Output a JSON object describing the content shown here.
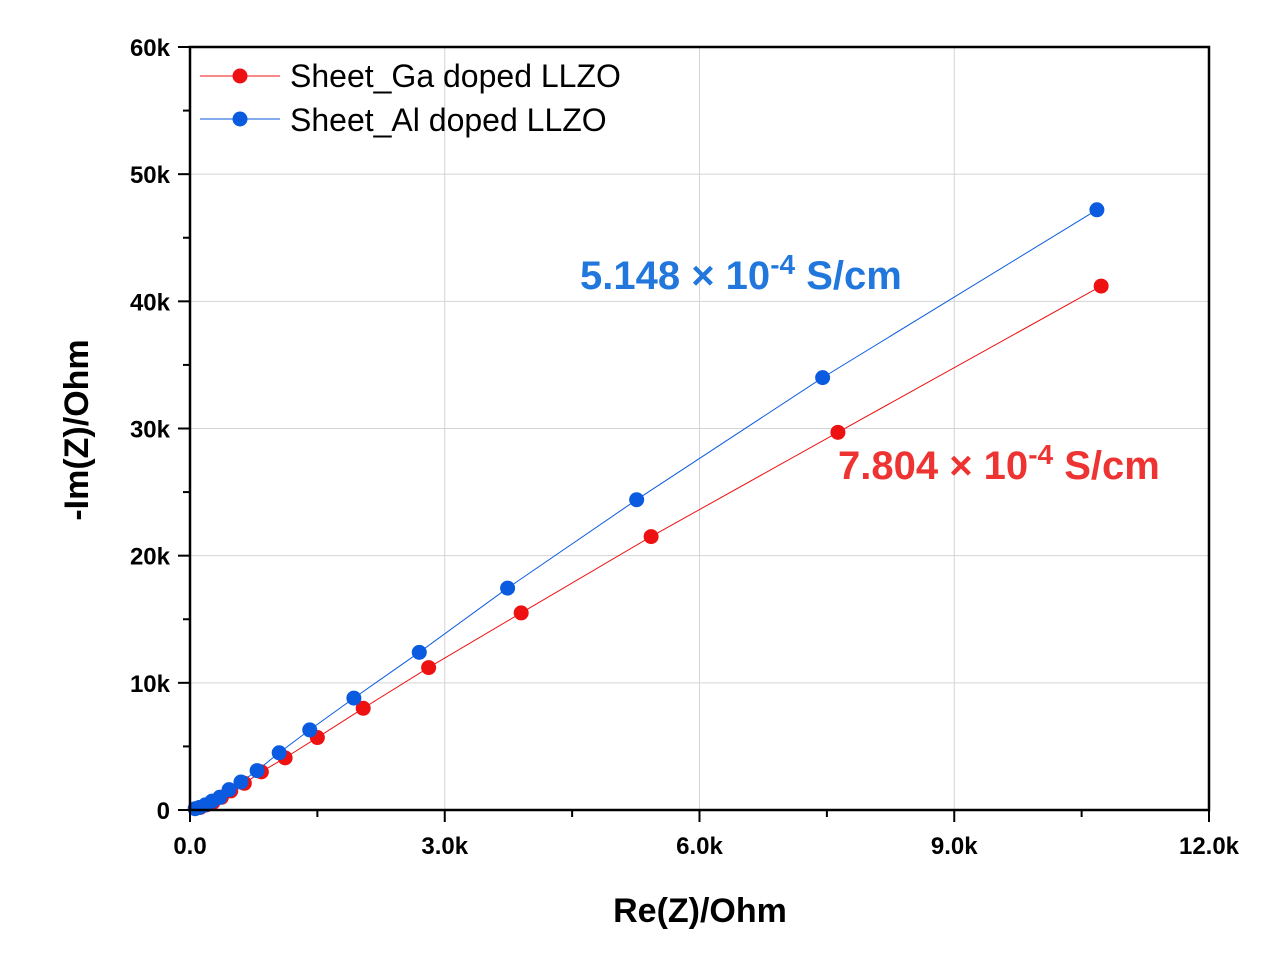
{
  "chart_data": {
    "type": "scatter",
    "title": "",
    "xlabel": "Re(Z)/Ohm",
    "ylabel": "-Im(Z)/Ohm",
    "xlim": [
      0,
      12000
    ],
    "ylim": [
      0,
      60000
    ],
    "x_ticks": [
      0,
      3000,
      6000,
      9000,
      12000
    ],
    "x_tick_labels": [
      "0.0",
      "3.0k",
      "6.0k",
      "9.0k",
      "12.0k"
    ],
    "y_ticks": [
      0,
      10000,
      20000,
      30000,
      40000,
      50000,
      60000
    ],
    "y_tick_labels": [
      "0",
      "10k",
      "20k",
      "30k",
      "40k",
      "50k",
      "60k"
    ],
    "grid": true,
    "legend_position": "top-left",
    "series": [
      {
        "name": "Sheet_Ga doped LLZO",
        "color": "#ee1111",
        "x": [
          120,
          190,
          270,
          370,
          480,
          640,
          840,
          1120,
          1500,
          2040,
          2810,
          3900,
          5430,
          7630,
          10730
        ],
        "y": [
          200,
          400,
          600,
          1000,
          1500,
          2100,
          3000,
          4100,
          5700,
          8000,
          11200,
          15500,
          21500,
          29700,
          41200
        ]
      },
      {
        "name": "Sheet_Al doped LLZO",
        "color": "#0a5be0",
        "x": [
          60,
          110,
          180,
          260,
          350,
          460,
          600,
          790,
          1050,
          1410,
          1930,
          2700,
          3740,
          5260,
          7450,
          10680
        ],
        "y": [
          100,
          200,
          400,
          700,
          1000,
          1600,
          2200,
          3100,
          4500,
          6300,
          8800,
          12400,
          17450,
          24400,
          34000,
          47200
        ]
      }
    ],
    "annotations": [
      {
        "base": "5.148 × 10",
        "exp": "-4",
        "unit": " S/cm",
        "color": "#2277dd"
      },
      {
        "base": "7.804 × 10",
        "exp": "-4",
        "unit": " S/cm",
        "color": "#ee3333"
      }
    ]
  }
}
